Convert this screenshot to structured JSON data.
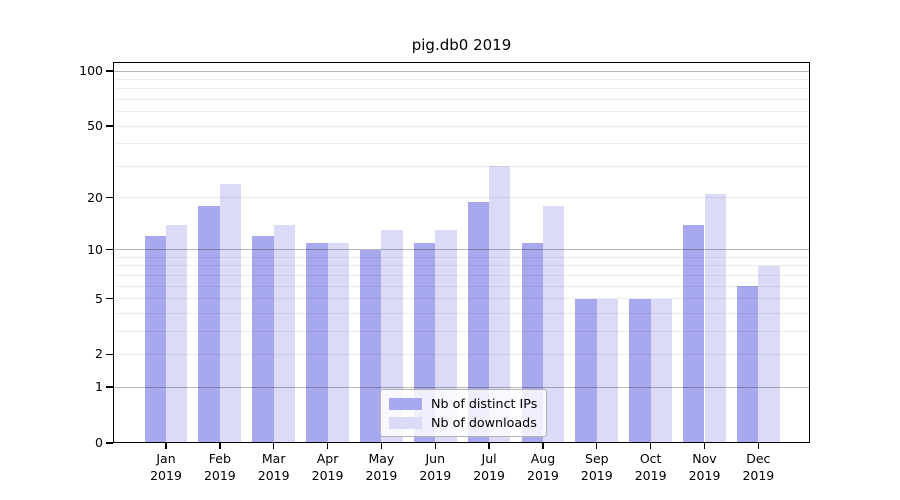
{
  "title": "pig.db0 2019",
  "chart_data": {
    "type": "bar",
    "title": "pig.db0 2019",
    "categories": [
      "Jan",
      "Feb",
      "Mar",
      "Apr",
      "May",
      "Jun",
      "Jul",
      "Aug",
      "Sep",
      "Oct",
      "Nov",
      "Dec"
    ],
    "year_label": "2019",
    "series": [
      {
        "name": "Nb of distinct IPs",
        "color": "#a8a8ef",
        "values": [
          12,
          18,
          12,
          11,
          10,
          11,
          19,
          11,
          5,
          5,
          14,
          6
        ]
      },
      {
        "name": "Nb of downloads",
        "color": "#dbdbf8",
        "values": [
          14,
          24,
          14,
          11,
          13,
          13,
          30,
          18,
          5,
          5,
          21,
          8
        ]
      }
    ],
    "yscale": "log1p",
    "ylim": [
      0,
      100
    ],
    "yticks": [
      0,
      1,
      2,
      5,
      10,
      20,
      50,
      100
    ],
    "gridlines_major": [
      1,
      10,
      100
    ],
    "gridlines_minor": [
      2,
      3,
      4,
      5,
      6,
      7,
      8,
      9,
      20,
      30,
      40,
      50,
      60,
      70,
      80,
      90
    ],
    "grid": true,
    "legend_position": "lower center",
    "xlabel": "",
    "ylabel": ""
  }
}
